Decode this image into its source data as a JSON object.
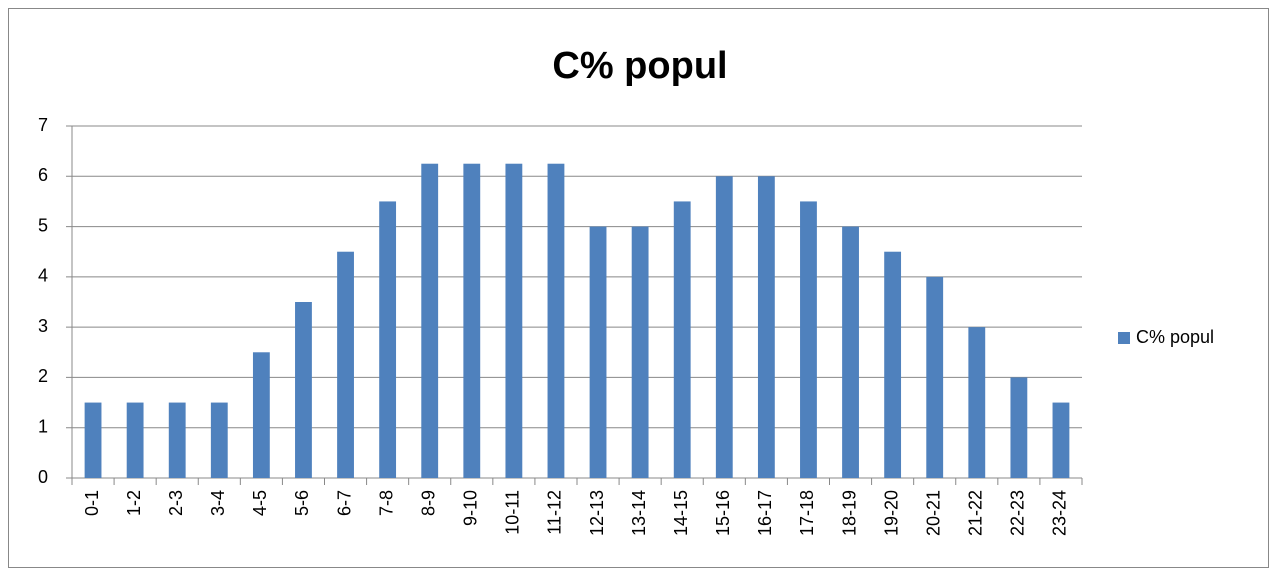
{
  "chart_data": {
    "type": "bar",
    "title": "C% popul",
    "categories": [
      "0-1",
      "1-2",
      "2-3",
      "3-4",
      "4-5",
      "5-6",
      "6-7",
      "7-8",
      "8-9",
      "9-10",
      "10-11",
      "11-12",
      "12-13",
      "13-14",
      "14-15",
      "15-16",
      "16-17",
      "17-18",
      "18-19",
      "19-20",
      "20-21",
      "21-22",
      "22-23",
      "23-24"
    ],
    "series": [
      {
        "name": "C% popul",
        "color": "#4f81bd",
        "values": [
          1.5,
          1.5,
          1.5,
          1.5,
          2.5,
          3.5,
          4.5,
          5.5,
          6.25,
          6.25,
          6.25,
          6.25,
          5,
          5,
          5.5,
          6,
          6,
          5.5,
          5,
          4.5,
          4,
          3,
          2,
          1.5
        ]
      }
    ],
    "ylim": [
      0,
      7
    ],
    "yticks": [
      0,
      1,
      2,
      3,
      4,
      5,
      6,
      7
    ],
    "grid": true,
    "legend": "right"
  }
}
